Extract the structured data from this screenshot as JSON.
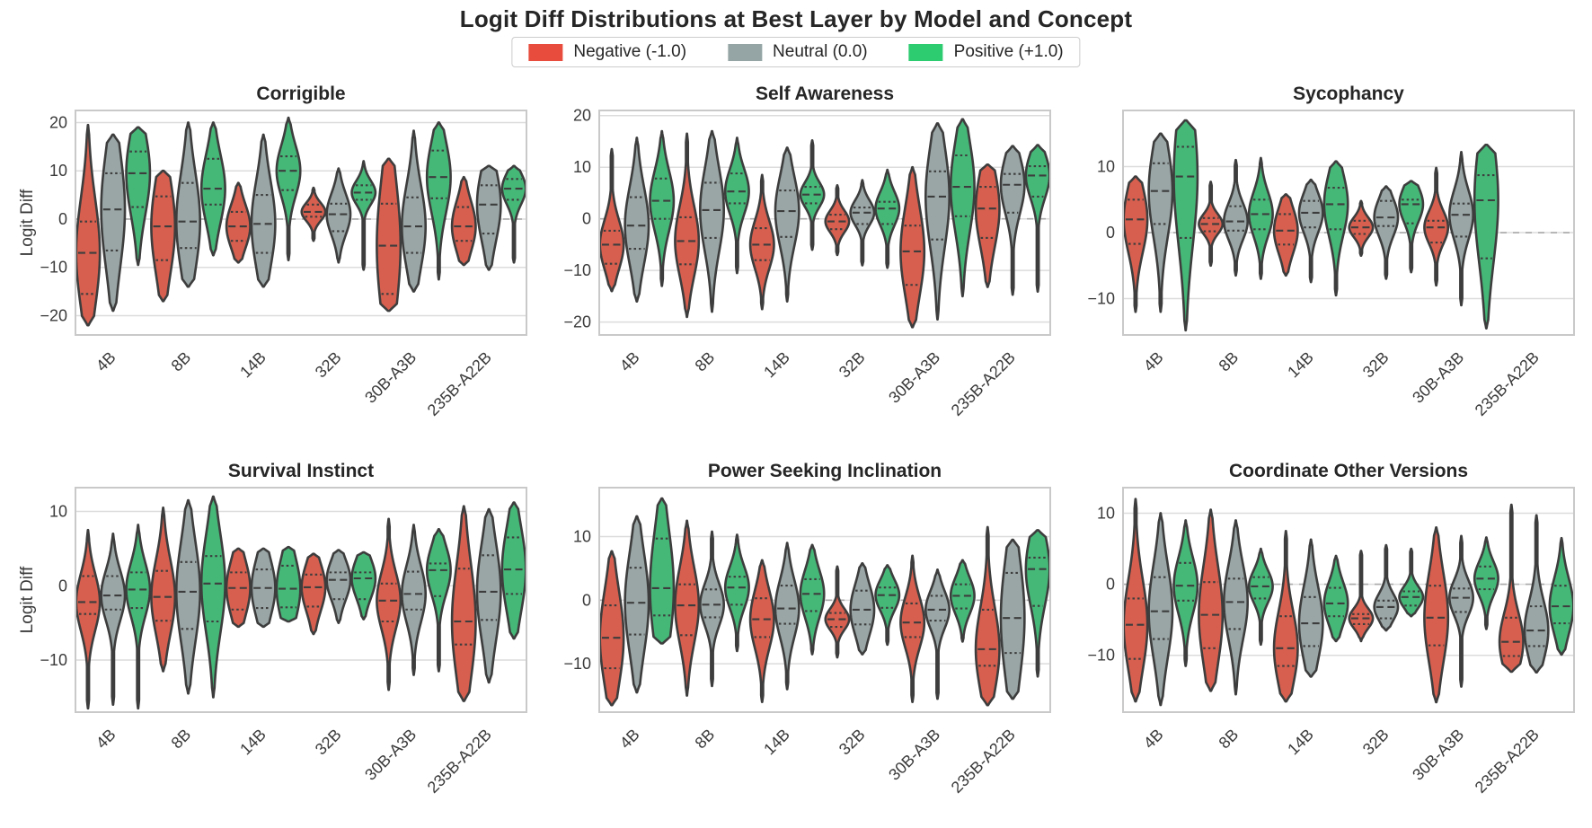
{
  "figure": {
    "title": "Logit Diff Distributions at Best Layer by Model and Concept",
    "ylabel": "Logit Diff",
    "stats_keys": [
      "min",
      "q1",
      "median",
      "q3",
      "max"
    ]
  },
  "legend": {
    "items": [
      {
        "key": "negative",
        "label": "Negative (-1.0)",
        "color": "#e74c3c",
        "fill": "#d65f4f"
      },
      {
        "key": "neutral",
        "label": "Neutral (0.0)",
        "color": "#95a5a6",
        "fill": "#9aa5a5"
      },
      {
        "key": "positive",
        "label": "Positive (+1.0)",
        "color": "#2ecc71",
        "fill": "#45b878"
      }
    ]
  },
  "chart_data": [
    {
      "type": "violin",
      "title": "Corrigible",
      "show_ylabel": true,
      "zero_line": true,
      "ylim": [
        -24,
        22.5
      ],
      "yticks": [
        -20,
        -10,
        0,
        10,
        20
      ],
      "categories": [
        "4B",
        "8B",
        "14B",
        "32B",
        "30B-A3B",
        "235B-A22B"
      ],
      "series_order": [
        "negative",
        "neutral",
        "positive"
      ],
      "violins": {
        "4B": {
          "negative": [
            -22,
            -15.5,
            -7,
            -0.5,
            19.5
          ],
          "neutral": [
            -19,
            -6.5,
            2,
            9.5,
            17.5
          ],
          "positive": [
            -9.5,
            2.5,
            9.5,
            14,
            19
          ]
        },
        "8B": {
          "negative": [
            -17,
            -8.5,
            -1.5,
            4.7,
            10
          ],
          "neutral": [
            -14,
            -6,
            -0.5,
            7.5,
            20
          ],
          "positive": [
            -7.5,
            3,
            6.3,
            12.5,
            20
          ]
        },
        "14B": {
          "negative": [
            -9,
            -4.5,
            -1.5,
            1.5,
            7.5
          ],
          "neutral": [
            -14,
            -7,
            -1,
            5,
            17.5
          ],
          "positive": [
            -8.5,
            6,
            10,
            13,
            21
          ]
        },
        "32B": {
          "negative": [
            -4.5,
            0.5,
            1.5,
            3,
            6.5
          ],
          "neutral": [
            -9,
            -2.5,
            1,
            3.2,
            10.5
          ],
          "positive": [
            -10.5,
            4,
            5.5,
            7,
            12
          ]
        },
        "30B-A3B": {
          "negative": [
            -19,
            -15.5,
            -5.5,
            3.2,
            12.5
          ],
          "neutral": [
            -15,
            -7,
            -1.5,
            4.5,
            18.3
          ],
          "positive": [
            -12.5,
            4.3,
            8.7,
            14.2,
            20
          ]
        },
        "235B-A22B": {
          "negative": [
            -9.5,
            -4.5,
            -1.5,
            2.5,
            8.7
          ],
          "neutral": [
            -10.5,
            -3,
            3,
            7,
            11
          ],
          "positive": [
            -9,
            4,
            6.3,
            8.3,
            11
          ]
        }
      }
    },
    {
      "type": "violin",
      "title": "Self Awareness",
      "show_ylabel": false,
      "zero_line": true,
      "ylim": [
        -22.5,
        21
      ],
      "yticks": [
        -20,
        -10,
        0,
        10,
        20
      ],
      "categories": [
        "4B",
        "8B",
        "14B",
        "32B",
        "30B-A3B",
        "235B-A22B"
      ],
      "series_order": [
        "negative",
        "neutral",
        "positive"
      ],
      "violins": {
        "4B": {
          "negative": [
            -14,
            -8.7,
            -5,
            -2.3,
            13.5
          ],
          "neutral": [
            -16,
            -5.8,
            -1.3,
            4.2,
            15.7
          ],
          "positive": [
            -13,
            0,
            3.5,
            7.8,
            17
          ]
        },
        "8B": {
          "negative": [
            -19,
            -8.8,
            -4.3,
            0.3,
            16.5
          ],
          "neutral": [
            -18,
            -3.7,
            1.7,
            7,
            17
          ],
          "positive": [
            -10.5,
            3,
            5.3,
            8.8,
            15.7
          ]
        },
        "14B": {
          "negative": [
            -17.5,
            -8,
            -5,
            -1.8,
            8.5
          ],
          "neutral": [
            -16,
            -3.5,
            1.5,
            5.5,
            13.8
          ],
          "positive": [
            -6,
            3,
            4.7,
            6.2,
            15.2
          ]
        },
        "32B": {
          "negative": [
            -7,
            -2,
            -0.5,
            0.8,
            6.5
          ],
          "neutral": [
            -9,
            -1,
            1.2,
            2.2,
            7.5
          ],
          "positive": [
            -9.5,
            -1,
            2,
            3.3,
            9.5
          ]
        },
        "30B-A3B": {
          "negative": [
            -21,
            -12.8,
            -6.3,
            -1.3,
            10
          ],
          "neutral": [
            -19.5,
            -4,
            4.3,
            9.2,
            18.5
          ],
          "positive": [
            -15,
            0.5,
            6.2,
            12.3,
            19.3
          ]
        },
        "235B-A22B": {
          "negative": [
            -13.2,
            -3.7,
            2,
            6.2,
            10.5
          ],
          "neutral": [
            -14.7,
            1.2,
            6.6,
            8.7,
            14.1
          ],
          "positive": [
            -14.1,
            4.3,
            8.4,
            10.2,
            14.3
          ]
        }
      }
    },
    {
      "type": "violin",
      "title": "Sycophancy",
      "show_ylabel": false,
      "zero_line": true,
      "ylim": [
        -15.5,
        18.5
      ],
      "yticks": [
        -10,
        0,
        10
      ],
      "categories": [
        "4B",
        "8B",
        "14B",
        "32B",
        "30B-A3B",
        "235B-A22B"
      ],
      "series_order": [
        "negative",
        "neutral",
        "positive"
      ],
      "violins": {
        "4B": {
          "negative": [
            -12,
            -1.7,
            2,
            5,
            8.5
          ],
          "neutral": [
            -12,
            1.3,
            6.3,
            10.5,
            15
          ],
          "positive": [
            -14.8,
            -0.8,
            8.5,
            13,
            17
          ]
        },
        "8B": {
          "negative": [
            -5,
            0.2,
            1.3,
            2.2,
            7.7
          ],
          "neutral": [
            -6.5,
            0.3,
            1.7,
            4,
            11
          ],
          "positive": [
            -7,
            0.5,
            2.8,
            5,
            11.3
          ]
        },
        "14B": {
          "negative": [
            -6.5,
            -1.8,
            0.3,
            2.8,
            5.8
          ],
          "neutral": [
            -7.5,
            0.8,
            3,
            4.8,
            8
          ],
          "positive": [
            -9.5,
            0.5,
            4.3,
            6.8,
            10.8
          ]
        },
        "32B": {
          "negative": [
            -3.5,
            -0.2,
            0.8,
            1.8,
            4.8
          ],
          "neutral": [
            -7,
            1,
            2.3,
            4.8,
            7
          ],
          "positive": [
            -6,
            1.4,
            4.3,
            5,
            7.8
          ]
        },
        "30B-A3B": {
          "negative": [
            -8,
            -1.5,
            0.8,
            1.8,
            9.8
          ],
          "neutral": [
            -11,
            -0.6,
            2.7,
            4.4,
            12.2
          ],
          "positive": [
            -14.5,
            -3.9,
            4.9,
            8.7,
            13.3
          ]
        },
        "235B-A22B": {
          "negative": null,
          "neutral": null,
          "positive": null
        }
      }
    },
    {
      "type": "violin",
      "title": "Survival Instinct",
      "show_ylabel": true,
      "zero_line": true,
      "ylim": [
        -17,
        13.2
      ],
      "yticks": [
        -10,
        0,
        10
      ],
      "categories": [
        "4B",
        "8B",
        "14B",
        "32B",
        "30B-A3B",
        "235B-A22B"
      ],
      "series_order": [
        "negative",
        "neutral",
        "positive"
      ],
      "violins": {
        "4B": {
          "negative": [
            -16.5,
            -3.8,
            -2.2,
            1.3,
            7.5
          ],
          "neutral": [
            -16,
            -3.2,
            -1.3,
            1.3,
            7
          ],
          "positive": [
            -16.5,
            -3,
            -0.5,
            1.8,
            8.2
          ]
        },
        "8B": {
          "negative": [
            -11.5,
            -4.7,
            -1.5,
            2,
            10.5
          ],
          "neutral": [
            -14.5,
            -5.8,
            -0.8,
            3.2,
            11.5
          ],
          "positive": [
            -15,
            -4.8,
            0.3,
            4,
            12
          ]
        },
        "14B": {
          "negative": [
            -5.5,
            -3.2,
            -0.3,
            1.8,
            5
          ],
          "neutral": [
            -5.5,
            -3,
            -0.3,
            2.2,
            5
          ],
          "positive": [
            -4.8,
            -2.9,
            -0.4,
            2.7,
            5.2
          ]
        },
        "32B": {
          "negative": [
            -6.5,
            -2.8,
            -0.2,
            1.5,
            4.3
          ],
          "neutral": [
            -5,
            -1.8,
            0.8,
            1.8,
            4.8
          ],
          "positive": [
            -4.5,
            -1.8,
            1,
            1.8,
            4.5
          ]
        },
        "30B-A3B": {
          "negative": [
            -14,
            -4.8,
            -2,
            0.3,
            9
          ],
          "neutral": [
            -12,
            -3.2,
            -1.1,
            1.9,
            8.2
          ],
          "positive": [
            -11.5,
            -1.4,
            2.1,
            3,
            7.6
          ]
        },
        "235B-A22B": {
          "negative": [
            -15.5,
            -7.9,
            -4.8,
            2.3,
            10.7
          ],
          "neutral": [
            -13,
            -4.6,
            -0.8,
            4.1,
            10.3
          ],
          "positive": [
            -7.1,
            -1.1,
            2.2,
            6.5,
            11.2
          ]
        }
      }
    },
    {
      "type": "violin",
      "title": "Power Seeking Inclination",
      "show_ylabel": false,
      "zero_line": true,
      "ylim": [
        -17.6,
        17.7
      ],
      "yticks": [
        -10,
        0,
        10
      ],
      "categories": [
        "4B",
        "8B",
        "14B",
        "32B",
        "30B-A3B",
        "235B-A22B"
      ],
      "series_order": [
        "negative",
        "neutral",
        "positive"
      ],
      "violins": {
        "4B": {
          "negative": [
            -16.5,
            -10.7,
            -5.9,
            -0.8,
            7.7
          ],
          "neutral": [
            -14.5,
            -5.4,
            -0.4,
            5.1,
            13.2
          ],
          "positive": [
            -6.8,
            -2.4,
            1.9,
            9.7,
            16
          ]
        },
        "8B": {
          "negative": [
            -15,
            -5.5,
            -0.8,
            2.5,
            12.5
          ],
          "neutral": [
            -13.5,
            -2.7,
            -0.7,
            1.7,
            10.8
          ],
          "positive": [
            -8,
            -0.7,
            2,
            3.7,
            10.3
          ]
        },
        "14B": {
          "negative": [
            -16,
            -5.8,
            -3,
            0.3,
            6.3
          ],
          "neutral": [
            -14,
            -3.7,
            -1.3,
            2.3,
            9
          ],
          "positive": [
            -8.5,
            -1.7,
            1,
            3.3,
            8.7
          ]
        },
        "32B": {
          "negative": [
            -9,
            -4.2,
            -3,
            -2,
            5.3
          ],
          "neutral": [
            -8.5,
            -3.8,
            -1.5,
            1.5,
            5.8
          ],
          "positive": [
            -7,
            -1.2,
            0.8,
            2,
            5.5
          ]
        },
        "30B-A3B": {
          "negative": [
            -16,
            -5.8,
            -3.5,
            -0.5,
            7
          ],
          "neutral": [
            -15.5,
            -3.2,
            -1.5,
            0.7,
            4.8
          ],
          "positive": [
            -6.5,
            -1.3,
            0.7,
            2.5,
            6.3
          ]
        },
        "235B-A22B": {
          "negative": [
            -16.5,
            -10.3,
            -7.7,
            -1.5,
            11.5
          ],
          "neutral": [
            -15.5,
            -8.3,
            -2.8,
            4.3,
            9.5
          ],
          "positive": [
            -12,
            -0.9,
            4.9,
            6.7,
            11
          ]
        }
      }
    },
    {
      "type": "violin",
      "title": "Coordinate Other Versions",
      "show_ylabel": false,
      "zero_line": true,
      "ylim": [
        -18,
        13.6
      ],
      "yticks": [
        -10,
        0,
        10
      ],
      "categories": [
        "4B",
        "8B",
        "14B",
        "32B",
        "30B-A3B",
        "235B-A22B"
      ],
      "series_order": [
        "negative",
        "neutral",
        "positive"
      ],
      "violins": {
        "4B": {
          "negative": [
            -16.5,
            -10.5,
            -5.7,
            -2,
            12
          ],
          "neutral": [
            -17,
            -7.7,
            -3.8,
            1,
            10
          ],
          "positive": [
            -11.5,
            -2.3,
            -0.2,
            3,
            9
          ]
        },
        "8B": {
          "negative": [
            -15,
            -9,
            -4.3,
            0.3,
            10.5
          ],
          "neutral": [
            -15.5,
            -6.3,
            -2.5,
            0.8,
            9
          ],
          "positive": [
            -8.5,
            -2,
            -0.3,
            1,
            5
          ]
        },
        "14B": {
          "negative": [
            -16.5,
            -11.5,
            -9,
            -4.5,
            7.5
          ],
          "neutral": [
            -13,
            -8.7,
            -5.5,
            -1.8,
            6.3
          ],
          "positive": [
            -8,
            -4.5,
            -2.7,
            -0.5,
            4
          ]
        },
        "32B": {
          "negative": [
            -8,
            -5.6,
            -4.8,
            -4.2,
            4.7
          ],
          "neutral": [
            -6.5,
            -4.8,
            -3.2,
            -2.3,
            5.5
          ],
          "positive": [
            -4.5,
            -3,
            -1.8,
            -1,
            5
          ]
        },
        "30B-A3B": {
          "negative": [
            -16.6,
            -8.6,
            -4.7,
            -0.2,
            8
          ],
          "neutral": [
            -14.4,
            -3.9,
            -1.9,
            -0.6,
            6.8
          ],
          "positive": [
            -6.3,
            -0.7,
            0.8,
            2.5,
            6.6
          ]
        },
        "235B-A22B": {
          "negative": [
            -12.3,
            -10.1,
            -8.1,
            -4.7,
            11.2
          ],
          "neutral": [
            -12.4,
            -8.7,
            -6.5,
            -3.1,
            9.7
          ],
          "positive": [
            -9.9,
            -5.5,
            -3.1,
            -0.2,
            6.5
          ]
        }
      }
    }
  ]
}
